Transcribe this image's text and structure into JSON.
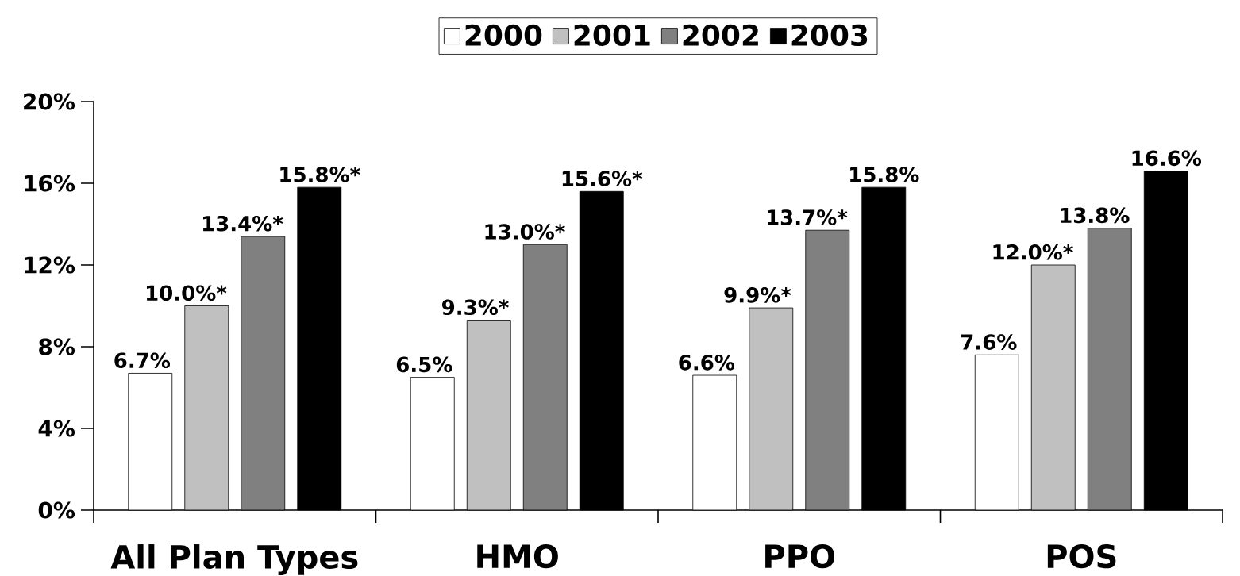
{
  "chart_data": {
    "type": "bar",
    "categories": [
      "All Plan Types",
      "HMO",
      "PPO",
      "POS"
    ],
    "ylim": [
      0,
      20
    ],
    "yticks": [
      {
        "value": 0,
        "label": "0%"
      },
      {
        "value": 4,
        "label": "4%"
      },
      {
        "value": 8,
        "label": "8%"
      },
      {
        "value": 12,
        "label": "12%"
      },
      {
        "value": 16,
        "label": "16%"
      },
      {
        "value": 20,
        "label": "20%"
      }
    ],
    "legend": "top",
    "grid": false,
    "series": [
      {
        "name": "2000",
        "color": "#ffffff",
        "values": [
          6.7,
          6.5,
          6.6,
          7.6
        ],
        "value_labels": [
          "6.7%",
          "6.5%",
          "6.6%",
          "7.6%"
        ]
      },
      {
        "name": "2001",
        "color": "#c0c0c0",
        "values": [
          10.0,
          9.3,
          9.9,
          12.0
        ],
        "value_labels": [
          "10.0%*",
          "9.3%*",
          "9.9%*",
          "12.0%*"
        ]
      },
      {
        "name": "2002",
        "color": "#808080",
        "values": [
          13.4,
          13.0,
          13.7,
          13.8
        ],
        "value_labels": [
          "13.4%*",
          "13.0%*",
          "13.7%*",
          "13.8%"
        ]
      },
      {
        "name": "2003",
        "color": "#000000",
        "values": [
          15.8,
          15.6,
          15.8,
          16.6
        ],
        "value_labels": [
          "15.8%*",
          "15.6%*",
          "15.8%",
          "16.6%"
        ]
      }
    ]
  }
}
